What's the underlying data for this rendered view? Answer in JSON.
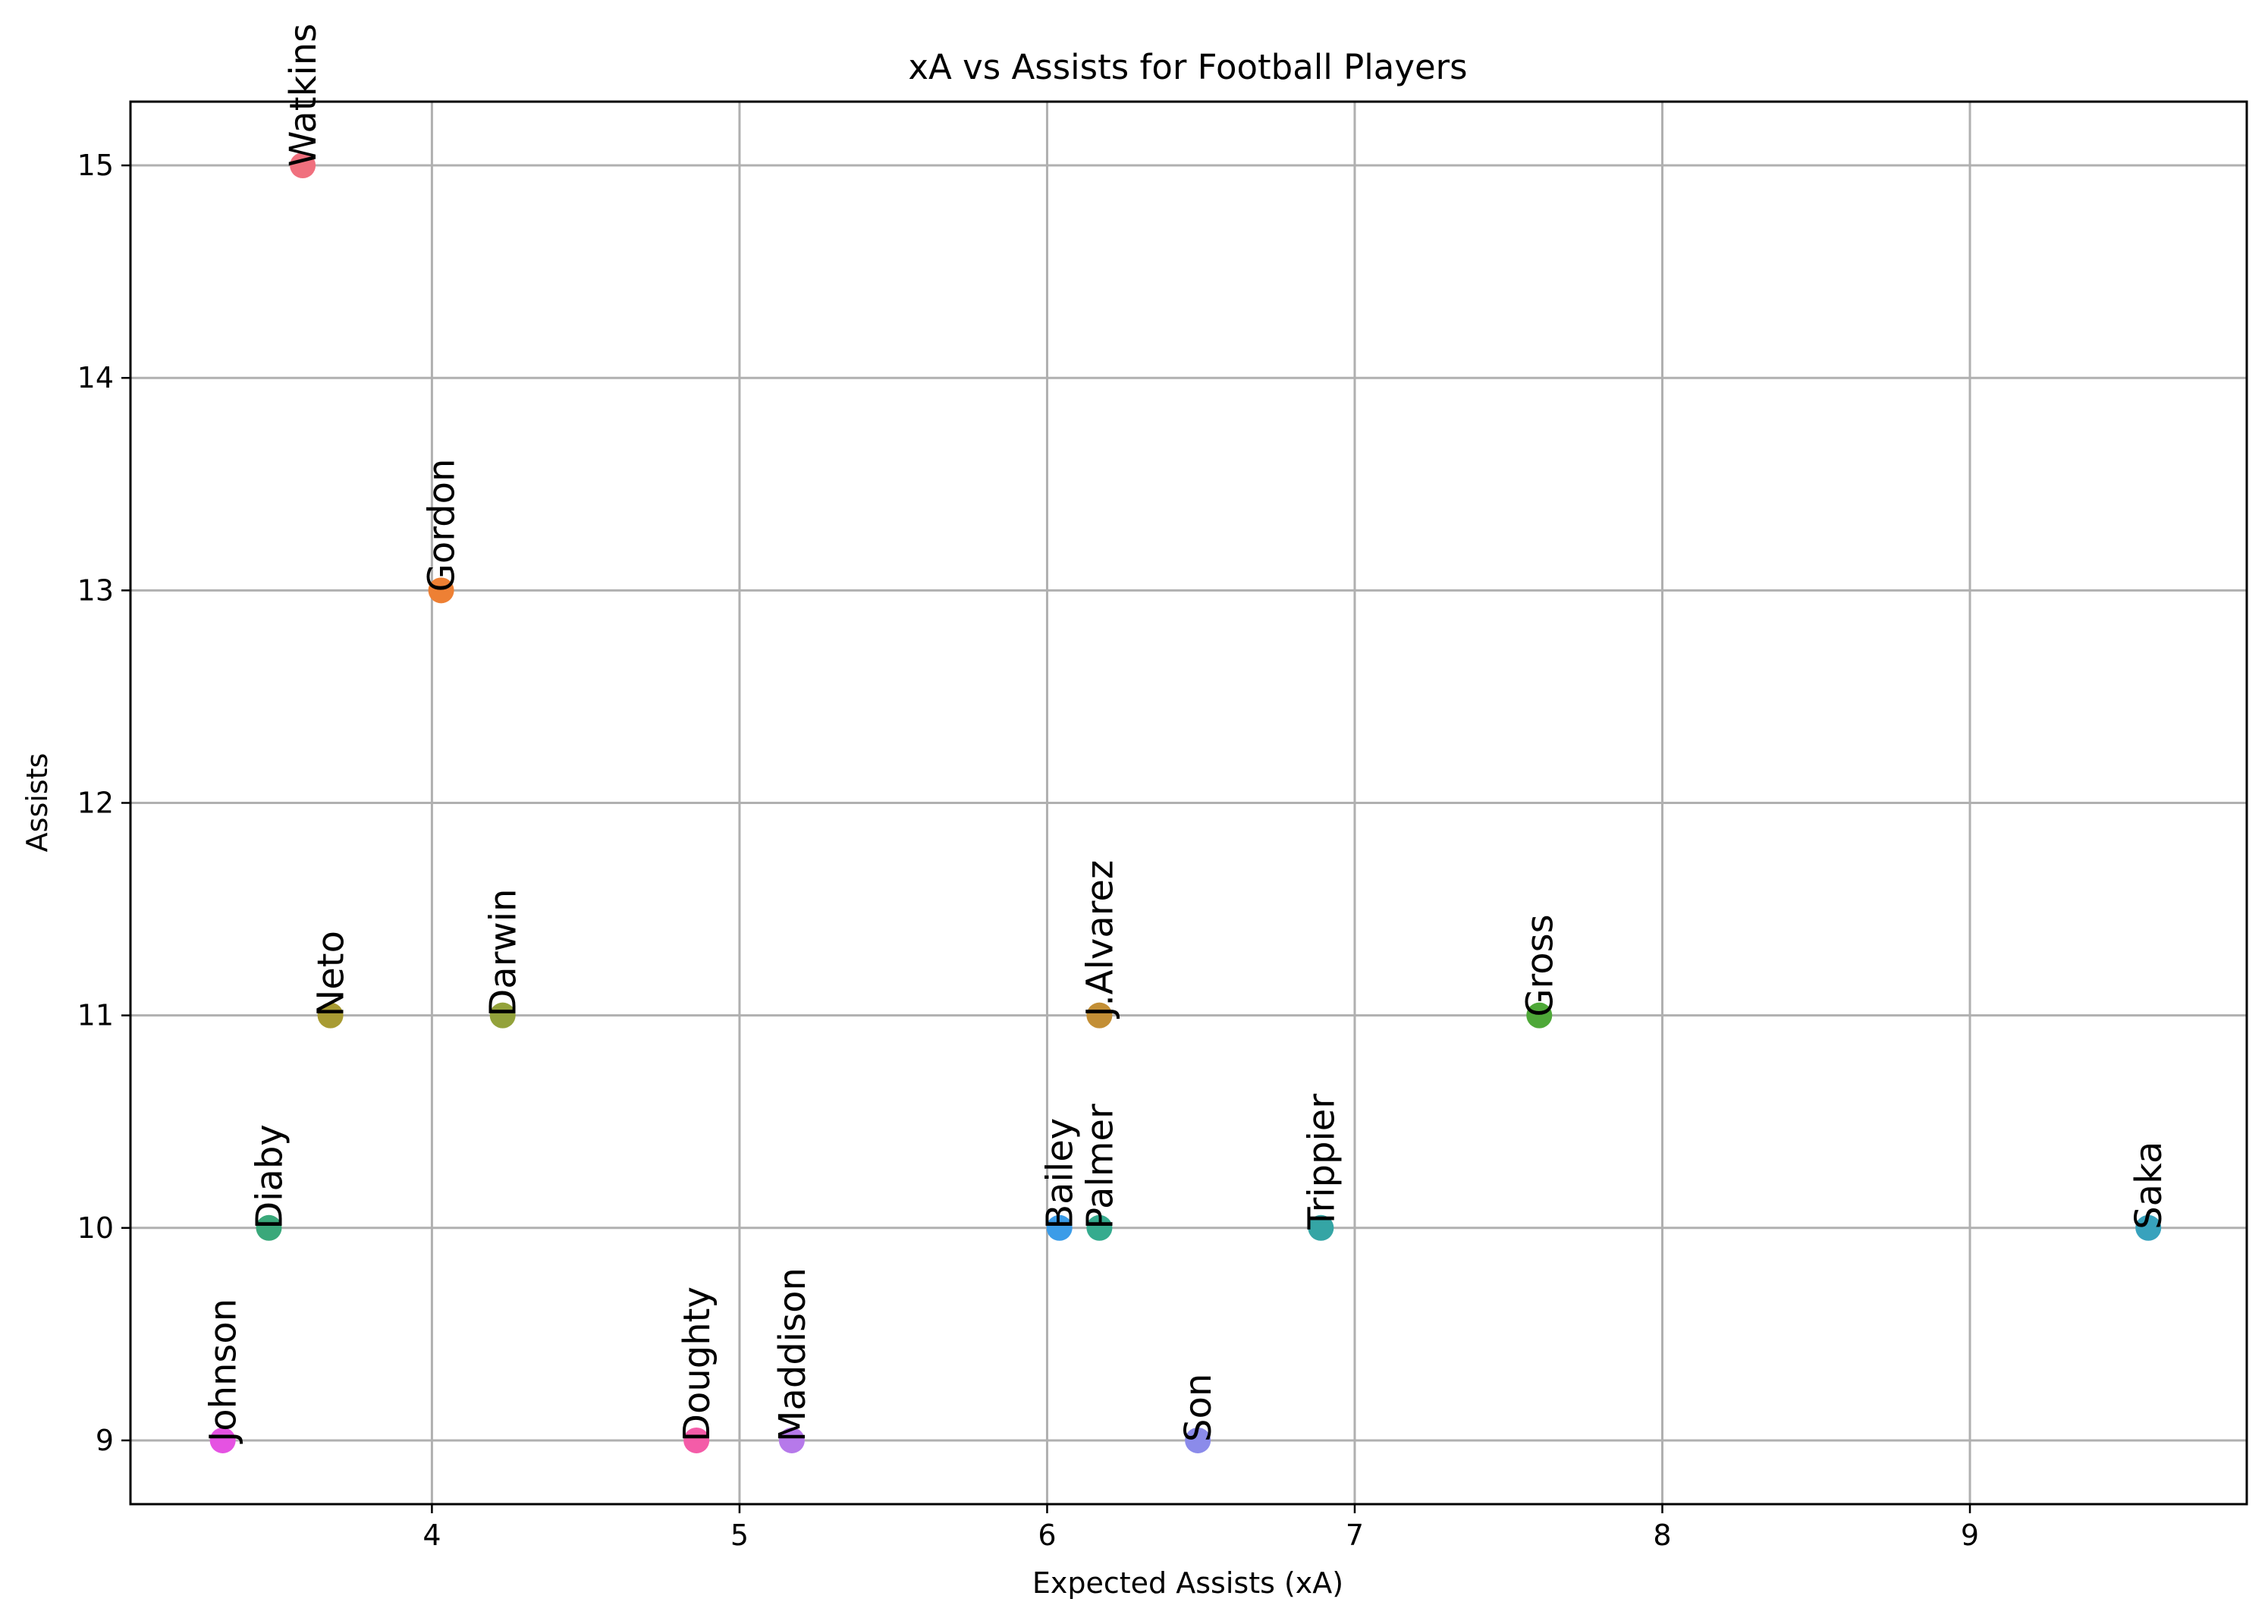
{
  "chart_data": {
    "type": "scatter",
    "title": "xA vs Assists for Football Players",
    "xlabel": "Expected Assists (xA)",
    "ylabel": "Assists",
    "xlim": [
      3.02,
      9.9
    ],
    "ylim": [
      8.7,
      15.3
    ],
    "xticks": [
      4,
      5,
      6,
      7,
      8,
      9
    ],
    "yticks": [
      9,
      10,
      11,
      12,
      13,
      14,
      15
    ],
    "grid": true,
    "points": [
      {
        "label": "Watkins",
        "x": 3.58,
        "y": 15,
        "color": "#f0707e"
      },
      {
        "label": "Gordon",
        "x": 4.03,
        "y": 13,
        "color": "#ee8034"
      },
      {
        "label": "Neto",
        "x": 3.67,
        "y": 11,
        "color": "#a89b33"
      },
      {
        "label": "Darwin",
        "x": 4.23,
        "y": 11,
        "color": "#93a23b"
      },
      {
        "label": "J.Alvarez",
        "x": 6.17,
        "y": 11,
        "color": "#c38f36"
      },
      {
        "label": "Gross",
        "x": 7.6,
        "y": 11,
        "color": "#4ea838"
      },
      {
        "label": "Diaby",
        "x": 3.47,
        "y": 10,
        "color": "#3aa87a"
      },
      {
        "label": "Bailey",
        "x": 6.04,
        "y": 10,
        "color": "#3b9ce8"
      },
      {
        "label": "Palmer",
        "x": 6.17,
        "y": 10,
        "color": "#35ab8e"
      },
      {
        "label": "Trippier",
        "x": 6.89,
        "y": 10,
        "color": "#35a5a5"
      },
      {
        "label": "Saka",
        "x": 9.58,
        "y": 10,
        "color": "#38a2bd"
      },
      {
        "label": "Johnson",
        "x": 3.32,
        "y": 9,
        "color": "#e552e2"
      },
      {
        "label": "Doughty",
        "x": 4.86,
        "y": 9,
        "color": "#f45ca8"
      },
      {
        "label": "Maddison",
        "x": 5.17,
        "y": 9,
        "color": "#b679ea"
      },
      {
        "label": "Son",
        "x": 6.49,
        "y": 9,
        "color": "#8b8bea"
      }
    ]
  }
}
